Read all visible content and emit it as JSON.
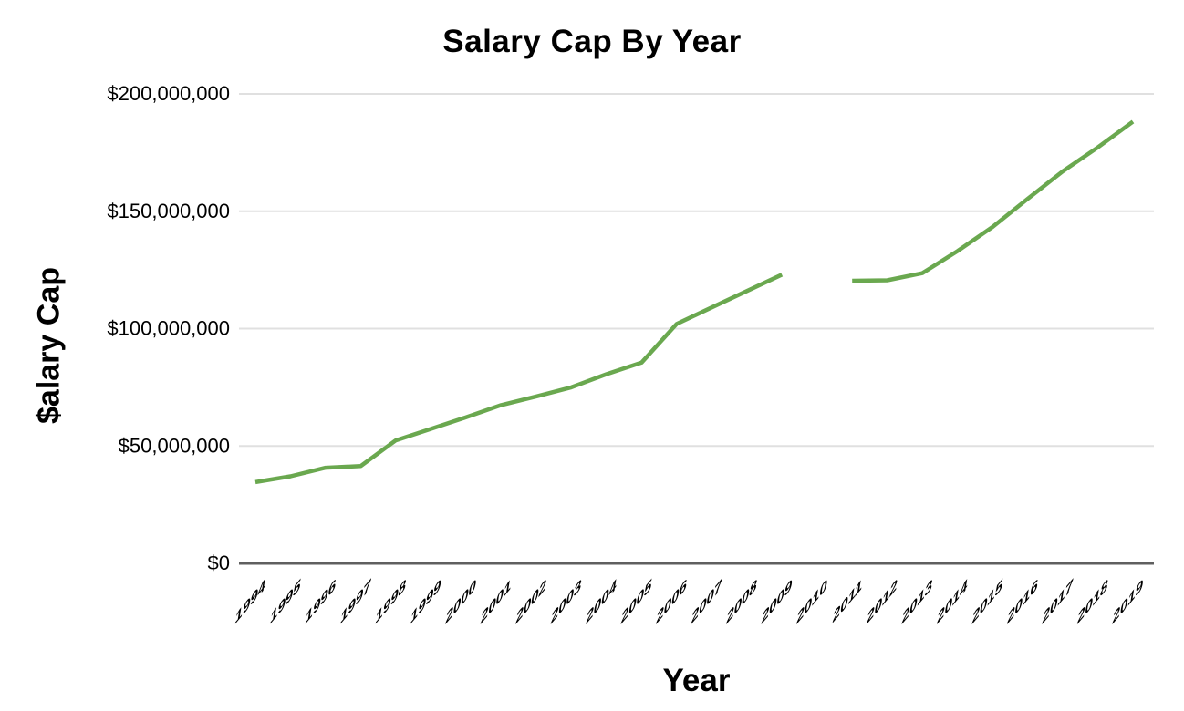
{
  "page": {
    "background": "#ffffff"
  },
  "chart": {
    "title": "Salary Cap By Year",
    "x_axis_title": "Year",
    "y_axis_title": "$alary Cap"
  },
  "colors": {
    "line": "#6aa84f",
    "gridline": "#e0e0e0",
    "baseline": "#5f5f5f",
    "text": "#000000"
  },
  "chart_data": {
    "type": "line",
    "title": "Salary Cap By Year",
    "xlabel": "Year",
    "ylabel": "$alary Cap",
    "categories": [
      "1994",
      "1995",
      "1996",
      "1997",
      "1998",
      "1999",
      "2000",
      "2001",
      "2002",
      "2003",
      "2004",
      "2005",
      "2006",
      "2007",
      "2008",
      "2009",
      "2010",
      "2011",
      "2012",
      "2013",
      "2014",
      "2015",
      "2016",
      "2017",
      "2018",
      "2019"
    ],
    "series": [
      {
        "name": "Salary Cap",
        "color": "#6aa84f",
        "values": [
          34600000,
          37100000,
          40750000,
          41450000,
          52400000,
          57300000,
          62200000,
          67400000,
          71100000,
          75000000,
          80600000,
          85500000,
          102000000,
          109000000,
          116000000,
          123000000,
          null,
          120400000,
          120600000,
          123600000,
          133000000,
          143300000,
          155300000,
          167000000,
          177200000,
          188200000
        ]
      }
    ],
    "y_ticks": [
      {
        "value": 0,
        "label": "$0"
      },
      {
        "value": 50000000,
        "label": "$50,000,000"
      },
      {
        "value": 100000000,
        "label": "$100,000,000"
      },
      {
        "value": 150000000,
        "label": "$150,000,000"
      },
      {
        "value": 200000000,
        "label": "$200,000,000"
      }
    ],
    "ylim": [
      0,
      200000000
    ],
    "grid": true,
    "legend": "none",
    "annotations": "No data point for 2010 (gap in line)"
  }
}
